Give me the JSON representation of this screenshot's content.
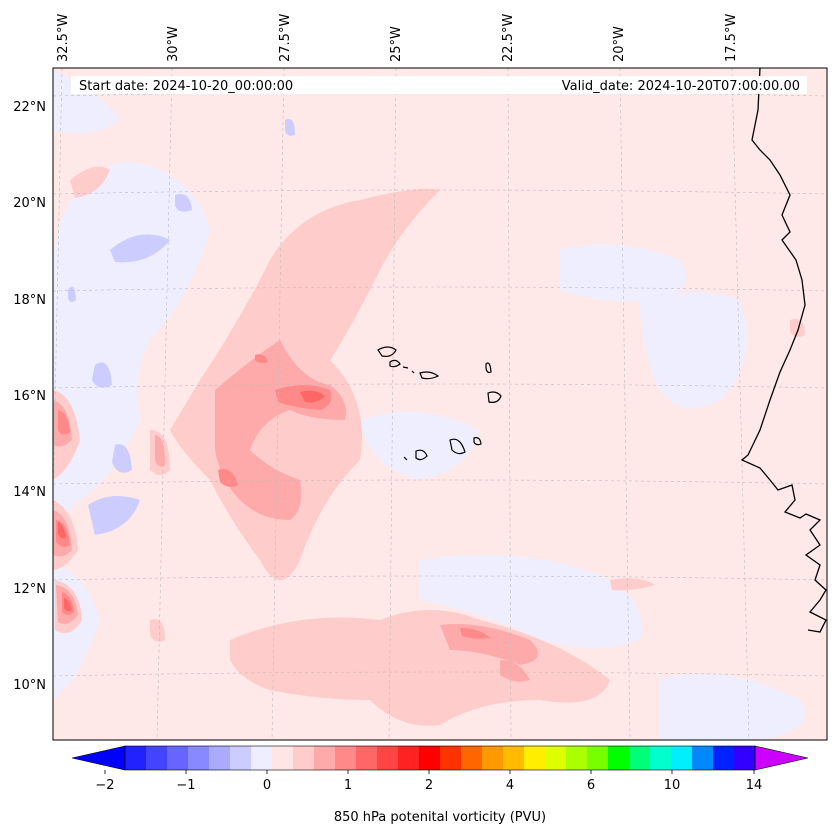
{
  "map": {
    "start_label": "Start date: 2024-10-20_00:00:00",
    "valid_label": "Valid_date: 2024-10-20T07:00:00.00",
    "lon_ticks": [
      "32.5°W",
      "30°W",
      "27.5°W",
      "25°W",
      "22.5°W",
      "20°W",
      "17.5°W"
    ],
    "lat_ticks": [
      "22°N",
      "20°N",
      "18°N",
      "16°N",
      "14°N",
      "12°N",
      "10°N"
    ],
    "colors": {
      "land_outline": "#000000",
      "grid": "#bbbbbb",
      "background_weak_positive": "#ffe8e8",
      "weak_negative": "#eeeeff"
    }
  },
  "colorbar": {
    "title": "850 hPa potenital vorticity (PVU)",
    "tick_labels": [
      "−2",
      "−1",
      "0",
      "1",
      "2",
      "4",
      "6",
      "10",
      "14"
    ],
    "extend": "both",
    "colors": [
      "#0000ff",
      "#2222ff",
      "#4444ff",
      "#6666ff",
      "#8888ff",
      "#aaaaff",
      "#ccccff",
      "#eeeeff",
      "#ffe5e5",
      "#ffcccc",
      "#ffaaaa",
      "#ff8888",
      "#ff6666",
      "#ff4444",
      "#ff2222",
      "#ff0000",
      "#ff3300",
      "#ff6600",
      "#ff9900",
      "#ffbb00",
      "#ffee00",
      "#ddff00",
      "#aaff00",
      "#77ff00",
      "#00ff00",
      "#00ff77",
      "#00ffcc",
      "#00eeff",
      "#0088ff",
      "#0022ff",
      "#3300ff",
      "#9900ff"
    ]
  }
}
